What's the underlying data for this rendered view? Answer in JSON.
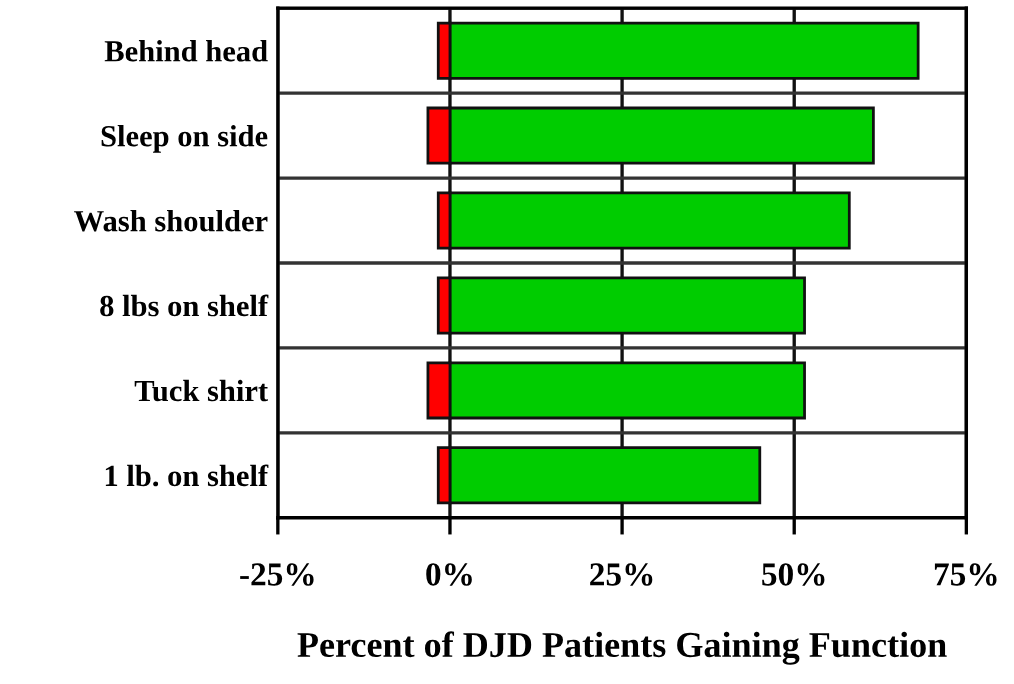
{
  "chart_data": {
    "type": "bar",
    "orientation": "horizontal",
    "stacked": true,
    "categories": [
      "Behind head",
      "Sleep on side",
      "Wash shoulder",
      "8 lbs on shelf",
      "Tuck shirt",
      "1 lb. on shelf"
    ],
    "series": [
      {
        "color": "#00cc00",
        "values": [
          68,
          61.5,
          58,
          51.5,
          51.5,
          45
        ]
      },
      {
        "color": "#ff0000",
        "values": [
          -1.7,
          -3.2,
          -1.7,
          -1.7,
          -3.2,
          -1.7
        ]
      }
    ],
    "xlabel": "Percent of DJD Patients Gaining Function",
    "xlim": [
      -25,
      75
    ],
    "xticks": [
      {
        "value": -25,
        "label": "-25%"
      },
      {
        "value": 0,
        "label": "0%"
      },
      {
        "value": 25,
        "label": "25%"
      },
      {
        "value": 50,
        "label": "50%"
      },
      {
        "value": 75,
        "label": "75%"
      }
    ],
    "grid": true,
    "legend": false
  }
}
